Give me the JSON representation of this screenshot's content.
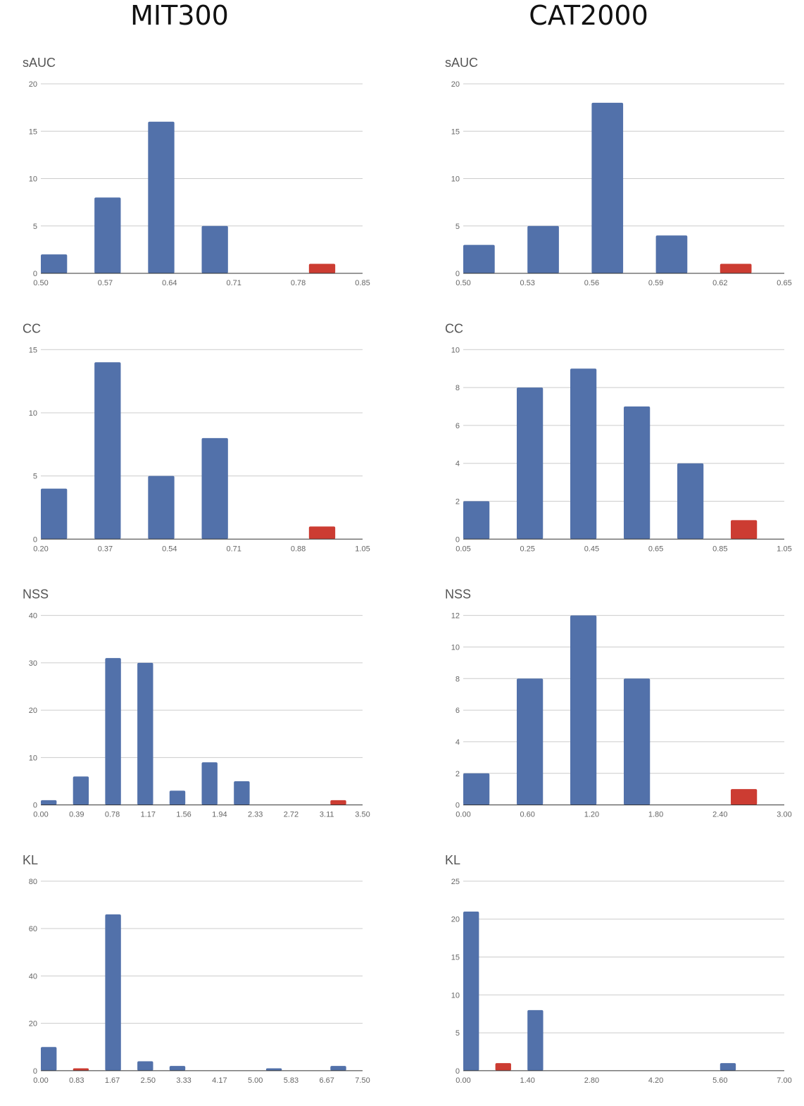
{
  "columns": [
    "MIT300",
    "CAT2000"
  ],
  "colors": {
    "bar": "#5271aa",
    "highlight": "#cc3c32",
    "grid": "#cccccc",
    "axis": "#333333",
    "title": "#555555",
    "tick": "#666666"
  },
  "chart_data": [
    {
      "type": "bar",
      "dataset": "MIT300",
      "title": "sAUC",
      "x_ticks": [
        "0.50",
        "0.57",
        "0.64",
        "0.71",
        "0.78",
        "0.85"
      ],
      "y_ticks": [
        0,
        5,
        10,
        15,
        20
      ],
      "ylim": [
        0,
        20
      ],
      "grid": true,
      "bars": [
        {
          "value": 2
        },
        {
          "value": 8
        },
        {
          "value": 16
        },
        {
          "value": 5
        },
        {
          "value": 0
        },
        {
          "value": 1,
          "highlight": true
        }
      ]
    },
    {
      "type": "bar",
      "dataset": "CAT2000",
      "title": "sAUC",
      "x_ticks": [
        "0.50",
        "0.53",
        "0.56",
        "0.59",
        "0.62",
        "0.65"
      ],
      "y_ticks": [
        0,
        5,
        10,
        15,
        20
      ],
      "ylim": [
        0,
        20
      ],
      "grid": true,
      "bars": [
        {
          "value": 3
        },
        {
          "value": 5
        },
        {
          "value": 18
        },
        {
          "value": 4
        },
        {
          "value": 1,
          "highlight": true
        }
      ]
    },
    {
      "type": "bar",
      "dataset": "MIT300",
      "title": "CC",
      "x_ticks": [
        "0.20",
        "0.37",
        "0.54",
        "0.71",
        "0.88",
        "1.05"
      ],
      "y_ticks": [
        0,
        5,
        10,
        15
      ],
      "ylim": [
        0,
        15
      ],
      "grid": true,
      "bars": [
        {
          "value": 4
        },
        {
          "value": 14
        },
        {
          "value": 5
        },
        {
          "value": 8
        },
        {
          "value": 0
        },
        {
          "value": 1,
          "highlight": true
        }
      ]
    },
    {
      "type": "bar",
      "dataset": "CAT2000",
      "title": "CC",
      "x_ticks": [
        "0.05",
        "0.25",
        "0.45",
        "0.65",
        "0.85",
        "1.05"
      ],
      "y_ticks": [
        0,
        2,
        4,
        6,
        8,
        10
      ],
      "ylim": [
        0,
        10
      ],
      "grid": true,
      "bars": [
        {
          "value": 2
        },
        {
          "value": 8
        },
        {
          "value": 9
        },
        {
          "value": 7
        },
        {
          "value": 4
        },
        {
          "value": 1,
          "highlight": true
        }
      ]
    },
    {
      "type": "bar",
      "dataset": "MIT300",
      "title": "NSS",
      "x_ticks": [
        "0.00",
        "0.39",
        "0.78",
        "1.17",
        "1.56",
        "1.94",
        "2.33",
        "2.72",
        "3.11",
        "3.50"
      ],
      "y_ticks": [
        0,
        10,
        20,
        30,
        40
      ],
      "ylim": [
        0,
        40
      ],
      "grid": true,
      "bars": [
        {
          "value": 1
        },
        {
          "value": 6
        },
        {
          "value": 31
        },
        {
          "value": 30
        },
        {
          "value": 3
        },
        {
          "value": 9
        },
        {
          "value": 5
        },
        {
          "value": 0
        },
        {
          "value": 0
        },
        {
          "value": 1,
          "highlight": true
        }
      ]
    },
    {
      "type": "bar",
      "dataset": "CAT2000",
      "title": "NSS",
      "x_ticks": [
        "0.00",
        "0.60",
        "1.20",
        "1.80",
        "2.40",
        "3.00"
      ],
      "y_ticks": [
        0,
        2,
        4,
        6,
        8,
        10,
        12
      ],
      "ylim": [
        0,
        12
      ],
      "grid": true,
      "bars": [
        {
          "value": 2
        },
        {
          "value": 8
        },
        {
          "value": 12
        },
        {
          "value": 8
        },
        {
          "value": 0
        },
        {
          "value": 1,
          "highlight": true
        }
      ]
    },
    {
      "type": "bar",
      "dataset": "MIT300",
      "title": "KL",
      "x_ticks": [
        "0.00",
        "0.83",
        "1.67",
        "2.50",
        "3.33",
        "4.17",
        "5.00",
        "5.83",
        "6.67",
        "7.50"
      ],
      "y_ticks": [
        0,
        20,
        40,
        60,
        80
      ],
      "ylim": [
        0,
        80
      ],
      "grid": true,
      "bars": [
        {
          "value": 10
        },
        {
          "value": 1,
          "highlight": true
        },
        {
          "value": 66
        },
        {
          "value": 4
        },
        {
          "value": 2
        },
        {
          "value": 0
        },
        {
          "value": 0
        },
        {
          "value": 1
        },
        {
          "value": 0
        },
        {
          "value": 2
        }
      ]
    },
    {
      "type": "bar",
      "dataset": "CAT2000",
      "title": "KL",
      "x_ticks": [
        "0.00",
        "1.40",
        "2.80",
        "4.20",
        "5.60",
        "7.00"
      ],
      "y_ticks": [
        0,
        5,
        10,
        15,
        20,
        25
      ],
      "ylim": [
        0,
        25
      ],
      "grid": true,
      "bars": [
        {
          "value": 21
        },
        {
          "value": 1,
          "highlight": true
        },
        {
          "value": 8
        },
        {
          "value": 0
        },
        {
          "value": 0
        },
        {
          "value": 0
        },
        {
          "value": 0
        },
        {
          "value": 0
        },
        {
          "value": 1
        },
        {
          "value": 0
        }
      ]
    }
  ]
}
